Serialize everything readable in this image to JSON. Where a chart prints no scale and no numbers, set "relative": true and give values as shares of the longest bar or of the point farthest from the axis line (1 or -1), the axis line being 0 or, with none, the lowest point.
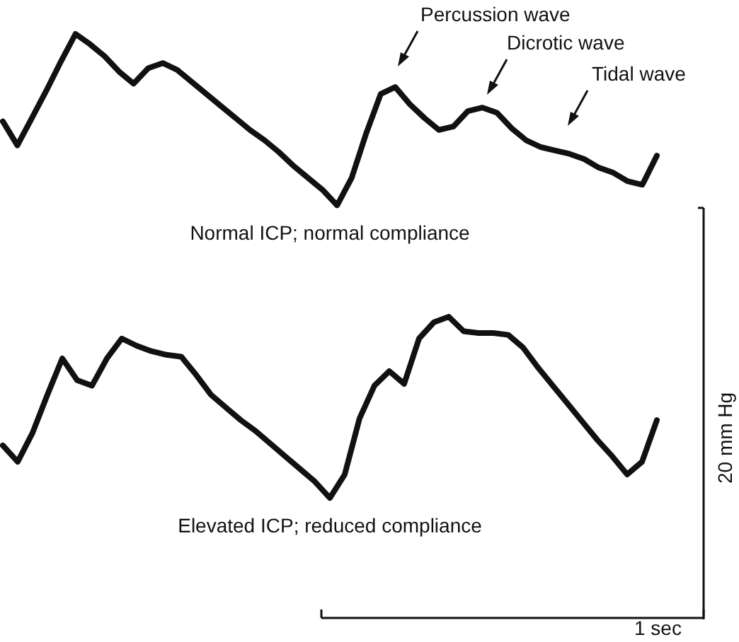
{
  "chart_data": [
    {
      "type": "line",
      "title": "Normal ICP; normal compliance",
      "relative": true,
      "marker": "none",
      "line_style": "solid",
      "legend": false,
      "grid": false,
      "tick_labels": false,
      "categories": [
        null,
        null,
        null,
        null,
        null,
        null,
        null,
        null,
        null,
        null,
        null,
        null,
        null,
        null,
        null,
        null,
        null,
        null,
        null,
        null,
        null,
        null,
        null,
        null,
        null,
        null,
        null,
        null,
        null,
        null,
        null,
        null,
        null,
        null,
        null,
        null,
        null,
        null,
        null,
        null,
        null,
        null,
        null,
        null,
        null,
        null
      ],
      "series": [
        {
          "color": "#111111",
          "values": [
            0.49,
            0.35,
            0.51,
            0.67,
            0.84,
            1.0,
            0.94,
            0.87,
            0.78,
            0.71,
            0.8,
            0.83,
            0.79,
            0.72,
            0.65,
            0.58,
            0.51,
            0.44,
            0.38,
            0.31,
            0.23,
            0.16,
            0.09,
            0,
            0.16,
            0.42,
            0.65,
            0.69,
            0.59,
            0.51,
            0.44,
            0.46,
            0.55,
            0.57,
            0.54,
            0.45,
            0.38,
            0.34,
            0.32,
            0.3,
            0.27,
            0.22,
            0.19,
            0.14,
            0.12,
            0.29
          ]
        }
      ],
      "annotations": [
        "Percussion wave",
        "Dicrotic wave",
        "Tidal wave"
      ]
    },
    {
      "type": "line",
      "title": "Elevated ICP; reduced compliance",
      "relative": true,
      "marker": "none",
      "line_style": "solid",
      "legend": false,
      "grid": false,
      "tick_labels": false,
      "categories": [
        null,
        null,
        null,
        null,
        null,
        null,
        null,
        null,
        null,
        null,
        null,
        null,
        null,
        null,
        null,
        null,
        null,
        null,
        null,
        null,
        null,
        null,
        null,
        null,
        null,
        null,
        null,
        null,
        null,
        null,
        null,
        null,
        null,
        null,
        null,
        null,
        null,
        null,
        null,
        null,
        null,
        null,
        null,
        null,
        null
      ],
      "series": [
        {
          "color": "#111111",
          "values": [
            0.29,
            0.2,
            0.36,
            0.57,
            0.77,
            0.65,
            0.62,
            0.77,
            0.88,
            0.84,
            0.81,
            0.79,
            0.78,
            0.68,
            0.57,
            0.5,
            0.43,
            0.37,
            0.3,
            0.23,
            0.16,
            0.09,
            0,
            0.13,
            0.44,
            0.62,
            0.7,
            0.63,
            0.88,
            0.97,
            1.0,
            0.92,
            0.91,
            0.91,
            0.9,
            0.83,
            0.72,
            0.62,
            0.52,
            0.42,
            0.32,
            0.23,
            0.13,
            0.2,
            0.43
          ]
        }
      ],
      "annotations": [
        "20 mm Hg",
        "1 sec"
      ]
    }
  ]
}
